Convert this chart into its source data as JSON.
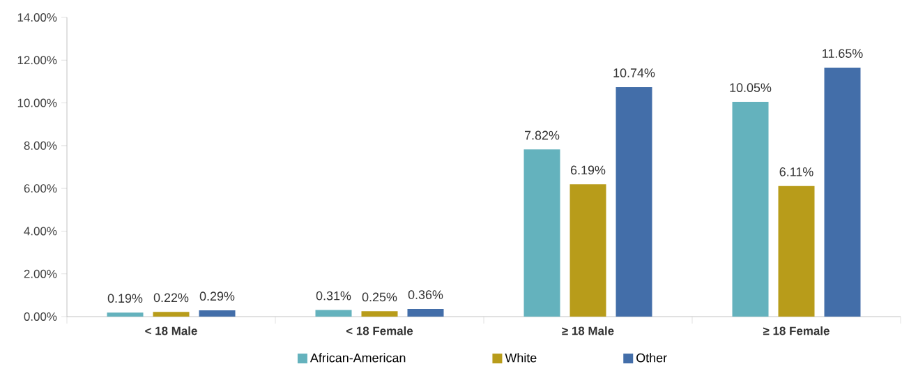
{
  "chart_data": {
    "type": "bar",
    "categories": [
      "< 18 Male",
      "< 18 Female",
      "≥ 18 Male",
      "≥ 18 Female"
    ],
    "series": [
      {
        "name": "African-American",
        "color": "#64b2bd",
        "values": [
          0.19,
          0.31,
          7.82,
          10.05
        ],
        "value_labels": [
          "0.19%",
          "0.31%",
          "7.82%",
          "10.05%"
        ]
      },
      {
        "name": "White",
        "color": "#b89c1a",
        "values": [
          0.22,
          0.25,
          6.19,
          6.11
        ],
        "value_labels": [
          "0.22%",
          "0.25%",
          "6.19%",
          "6.11%"
        ]
      },
      {
        "name": "Other",
        "color": "#436ea9",
        "values": [
          0.29,
          0.36,
          10.74,
          11.65
        ],
        "value_labels": [
          "0.29%",
          "0.36%",
          "10.74%",
          "11.65%"
        ]
      }
    ],
    "ylim": [
      0,
      14
    ],
    "yticks": [
      {
        "value": 0,
        "label": "0.00%"
      },
      {
        "value": 2,
        "label": "2.00%"
      },
      {
        "value": 4,
        "label": "4.00%"
      },
      {
        "value": 6,
        "label": "6.00%"
      },
      {
        "value": 8,
        "label": "8.00%"
      },
      {
        "value": 10,
        "label": "10.00%"
      },
      {
        "value": 12,
        "label": "12.00%"
      },
      {
        "value": 14,
        "label": "14.00%"
      }
    ],
    "grid": false,
    "legend": "bottom"
  }
}
